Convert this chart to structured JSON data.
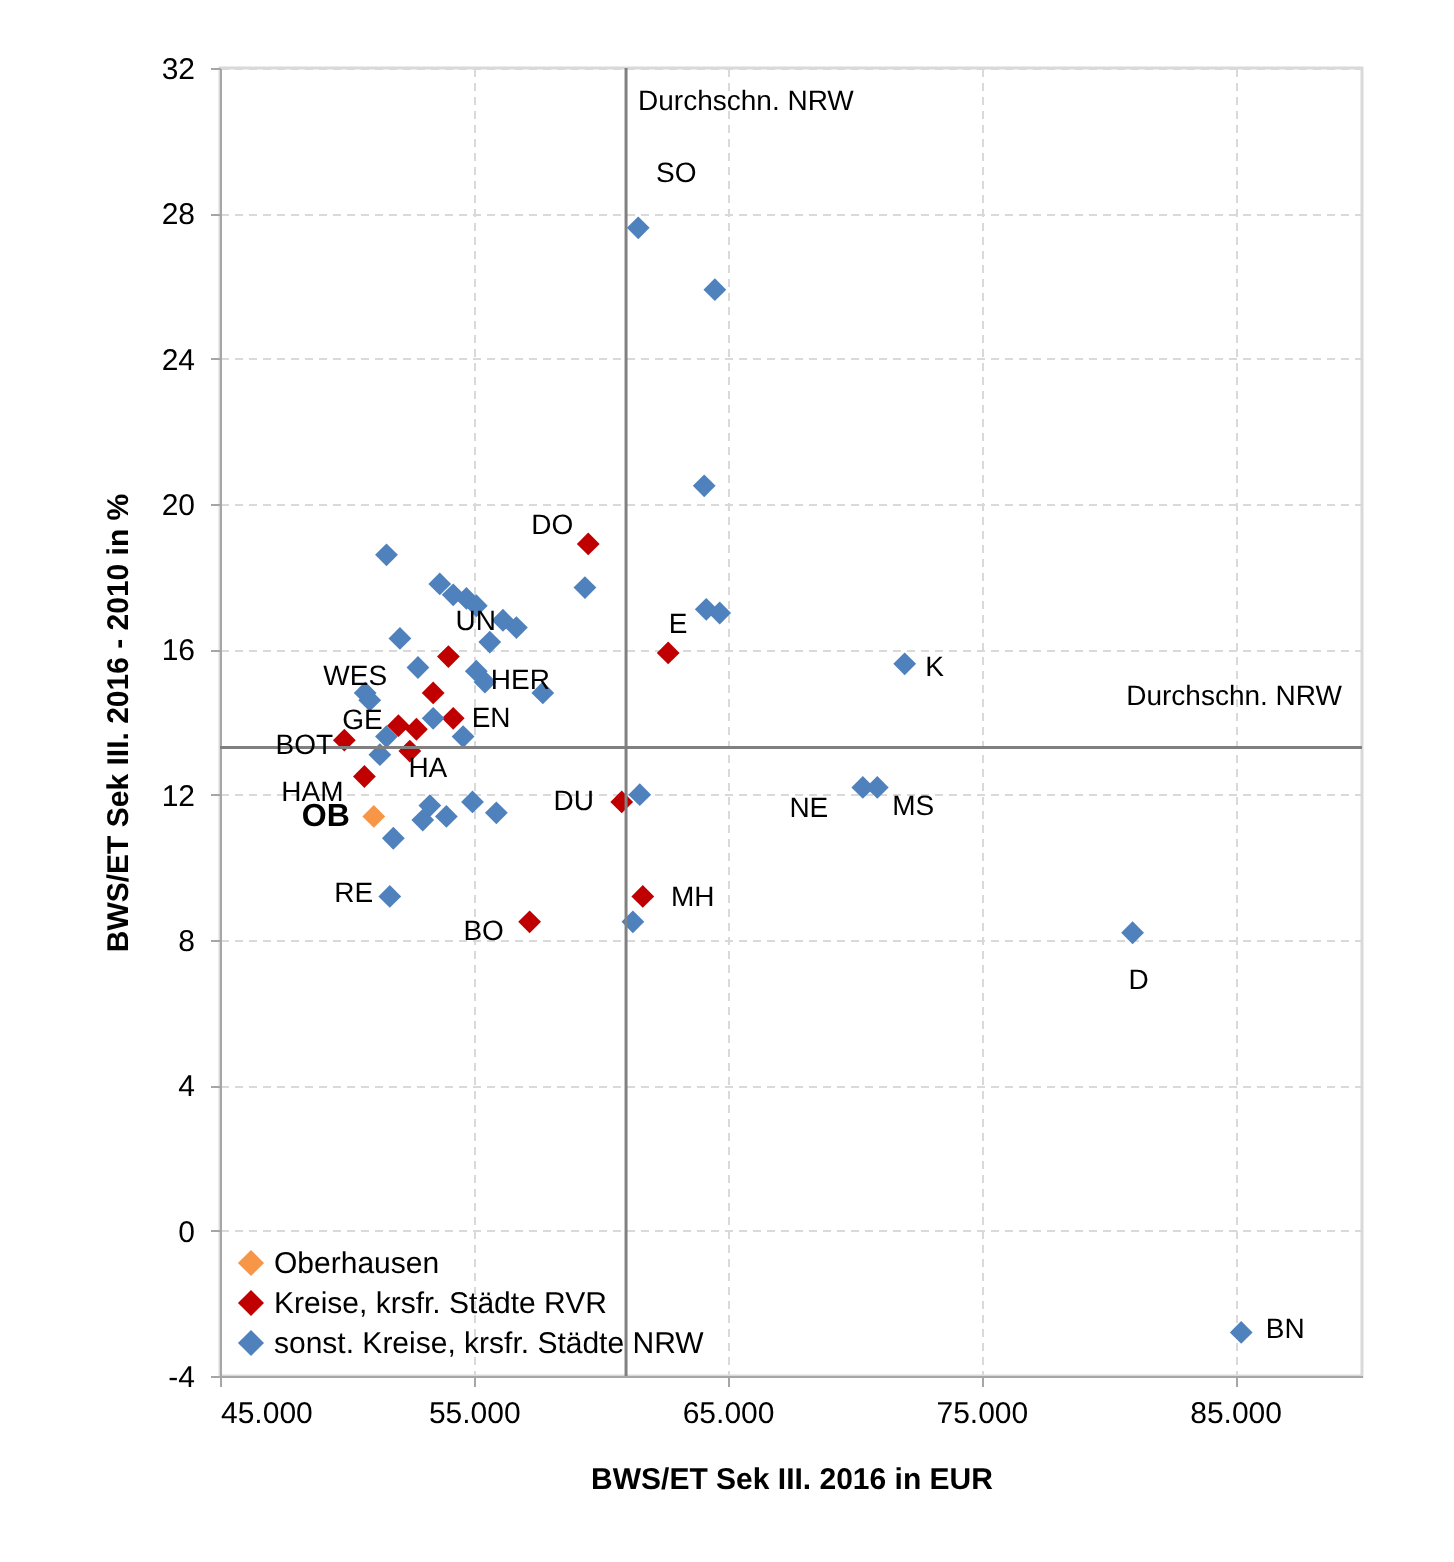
{
  "chart_data": {
    "type": "scatter",
    "xlabel": "BWS/ET Sek III. 2016  in EUR",
    "ylabel": "BWS/ET Sek III. 2016 - 2010 in %",
    "xlim": [
      45000,
      90000
    ],
    "xticks": [
      {
        "value": 45000,
        "label": "45.000"
      },
      {
        "value": 55000,
        "label": "55.000"
      },
      {
        "value": 65000,
        "label": "65.000"
      },
      {
        "value": 75000,
        "label": "75.000"
      },
      {
        "value": 85000,
        "label": "85.000"
      }
    ],
    "ylim": [
      -4,
      32
    ],
    "yticks": [
      -4,
      0,
      4,
      8,
      12,
      16,
      20,
      24,
      28,
      32
    ],
    "grid": true,
    "legend": "bottom left",
    "marker": "diamond",
    "series": [
      {
        "name": "Oberhausen",
        "color": "#f79646",
        "x": [
          51060
        ],
        "values": [
          11.4
        ]
      },
      {
        "name": "Kreise, krsfr. Städte RVR",
        "color": "#c00000",
        "x": [
          59510,
          54000,
          53400,
          54190,
          52030,
          52740,
          52480,
          49900,
          50690,
          60830,
          57200,
          62660,
          61660
        ],
        "values": [
          18.9,
          15.8,
          14.8,
          14.1,
          13.9,
          13.8,
          13.2,
          13.5,
          12.5,
          11.8,
          8.5,
          15.9,
          9.2
        ]
      },
      {
        "name": "sonst. Kreise, krsfr. Städte NRW",
        "color": "#4f81bd",
        "x": [
          51560,
          53660,
          54190,
          54710,
          55100,
          56680,
          56150,
          55630,
          59380,
          52090,
          52800,
          55100,
          55440,
          57720,
          50720,
          50900,
          53400,
          54580,
          51560,
          51300,
          53270,
          53920,
          52990,
          54950,
          55890,
          51830,
          51690,
          61540,
          61270,
          61480,
          64500,
          64080,
          64160,
          64690,
          71980,
          70330,
          70900,
          80960,
          85240
        ],
        "values": [
          18.6,
          17.8,
          17.5,
          17.4,
          17.2,
          16.6,
          16.8,
          16.2,
          17.7,
          16.3,
          15.5,
          15.4,
          15.1,
          14.8,
          14.8,
          14.6,
          14.1,
          13.6,
          13.6,
          13.1,
          11.7,
          11.4,
          11.3,
          11.8,
          11.5,
          10.8,
          9.2,
          12.0,
          8.5,
          27.6,
          25.9,
          20.5,
          17.1,
          17.0,
          15.6,
          12.2,
          12.2,
          8.2,
          -2.8
        ]
      }
    ],
    "ref_lines": [
      {
        "axis": "x",
        "value": 61000,
        "label": "Durchschn. NRW"
      },
      {
        "axis": "y",
        "value": 13.3,
        "label": "Durchschn. NRW"
      }
    ],
    "annotations": [
      {
        "text": "SO",
        "x": 61480,
        "y": 27.6
      },
      {
        "text": "DO",
        "x": 59510,
        "y": 18.9
      },
      {
        "text": "UN",
        "x": 55630,
        "y": 16.2
      },
      {
        "text": "E",
        "x": 62660,
        "y": 15.9
      },
      {
        "text": "WES",
        "x": 50720,
        "y": 14.8
      },
      {
        "text": "HER",
        "x": 55100,
        "y": 15.4
      },
      {
        "text": "K",
        "x": 71980,
        "y": 15.6
      },
      {
        "text": "GE",
        "x": 51560,
        "y": 13.6
      },
      {
        "text": "EN",
        "x": 54580,
        "y": 13.6
      },
      {
        "text": "BOT",
        "x": 49900,
        "y": 13.5
      },
      {
        "text": "HA",
        "x": 52480,
        "y": 13.2
      },
      {
        "text": "HAM",
        "x": 50690,
        "y": 12.5
      },
      {
        "text": "DU",
        "x": 60830,
        "y": 11.8
      },
      {
        "text": "OB",
        "x": 51060,
        "y": 11.4
      },
      {
        "text": "NE",
        "x": 70330,
        "y": 12.2
      },
      {
        "text": "MS",
        "x": 70900,
        "y": 12.2
      },
      {
        "text": "RE",
        "x": 51690,
        "y": 9.2
      },
      {
        "text": "MH",
        "x": 61660,
        "y": 9.2
      },
      {
        "text": "BO",
        "x": 57200,
        "y": 8.5
      },
      {
        "text": "D",
        "x": 80960,
        "y": 8.2
      },
      {
        "text": "BN",
        "x": 85240,
        "y": -2.8
      }
    ]
  }
}
